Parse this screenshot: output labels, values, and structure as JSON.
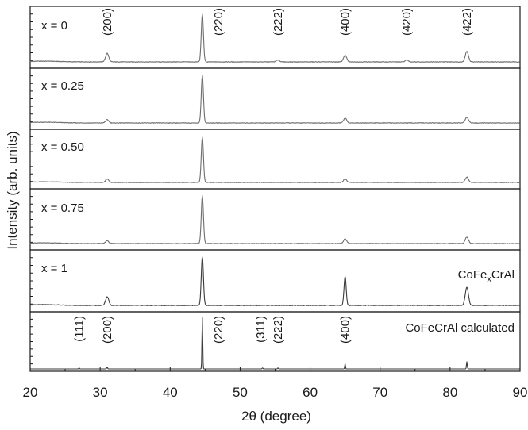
{
  "chart_data": {
    "type": "line",
    "xlabel": "2θ (degree)",
    "ylabel": "Intensity (arb. units)",
    "xlim": [
      20,
      90
    ],
    "xticks": [
      20,
      30,
      40,
      50,
      60,
      70,
      80,
      90
    ],
    "panels": [
      {
        "label": "x = 0",
        "peaks": [
          {
            "x": 31.0,
            "h": 0.18
          },
          {
            "x": 44.6,
            "h": 1.0
          },
          {
            "x": 55.4,
            "h": 0.04
          },
          {
            "x": 65.0,
            "h": 0.14
          },
          {
            "x": 73.8,
            "h": 0.04
          },
          {
            "x": 82.4,
            "h": 0.22
          }
        ],
        "annotations": [
          {
            "text": "(200)",
            "x": 31.0
          },
          {
            "text": "(220)",
            "x": 46.9
          },
          {
            "text": "(222)",
            "x": 55.4
          },
          {
            "text": "(400)",
            "x": 65.0
          },
          {
            "text": "(420)",
            "x": 73.8
          },
          {
            "text": "(422)",
            "x": 82.4
          }
        ]
      },
      {
        "label": "x = 0.25",
        "peaks": [
          {
            "x": 31.0,
            "h": 0.07
          },
          {
            "x": 44.6,
            "h": 1.0
          },
          {
            "x": 65.0,
            "h": 0.1
          },
          {
            "x": 82.4,
            "h": 0.12
          }
        ],
        "annotations": []
      },
      {
        "label": "x = 0.50",
        "peaks": [
          {
            "x": 31.0,
            "h": 0.08
          },
          {
            "x": 44.6,
            "h": 1.0
          },
          {
            "x": 65.0,
            "h": 0.08
          },
          {
            "x": 82.4,
            "h": 0.12
          }
        ],
        "annotations": []
      },
      {
        "label": "x = 0.75",
        "peaks": [
          {
            "x": 31.0,
            "h": 0.06
          },
          {
            "x": 44.6,
            "h": 1.0
          },
          {
            "x": 65.0,
            "h": 0.1
          },
          {
            "x": 82.4,
            "h": 0.14
          }
        ],
        "annotations": []
      },
      {
        "label": "x = 1",
        "label_right": "CoFe",
        "label_right_sub": "x",
        "label_right_tail": "CrAl",
        "peaks": [
          {
            "x": 31.0,
            "h": 0.18
          },
          {
            "x": 44.6,
            "h": 1.0
          },
          {
            "x": 65.0,
            "h": 0.6
          },
          {
            "x": 82.4,
            "h": 0.38
          }
        ],
        "annotations": []
      },
      {
        "label": "",
        "label_right": "CoFeCrAl calculated",
        "peaks": [
          {
            "x": 27.0,
            "h": 0.02
          },
          {
            "x": 31.0,
            "h": 0.04
          },
          {
            "x": 44.6,
            "h": 1.0
          },
          {
            "x": 53.2,
            "h": 0.02
          },
          {
            "x": 55.4,
            "h": 0.02
          },
          {
            "x": 65.0,
            "h": 0.1
          },
          {
            "x": 82.4,
            "h": 0.14
          }
        ],
        "annotations": [
          {
            "text": "(111)",
            "x": 27.0
          },
          {
            "text": "(200)",
            "x": 31.0
          },
          {
            "text": "(220)",
            "x": 46.9
          },
          {
            "text": "(311)",
            "x": 52.9
          },
          {
            "text": "(222)",
            "x": 55.4
          },
          {
            "text": "(400)",
            "x": 65.0
          }
        ]
      }
    ]
  }
}
